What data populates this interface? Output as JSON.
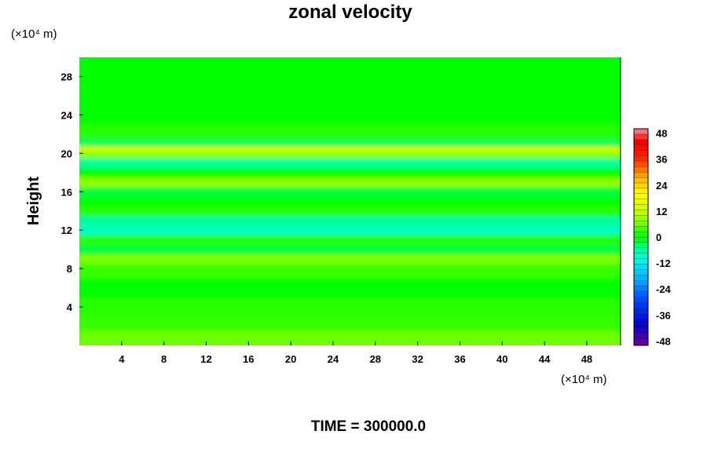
{
  "chart_data": {
    "type": "heatmap",
    "title": "zonal velocity",
    "ylabel": "Height",
    "xlabel": "",
    "y_unit": "(×10⁴ m)",
    "x_unit": "(×10⁴ m)",
    "x_ticks": [
      4,
      8,
      12,
      16,
      20,
      24,
      28,
      32,
      36,
      40,
      44,
      48
    ],
    "y_ticks": [
      4,
      8,
      12,
      16,
      20,
      24,
      28
    ],
    "xlim": [
      0,
      51.2
    ],
    "ylim": [
      0,
      30
    ],
    "colorbar": {
      "ticks": [
        48,
        36,
        24,
        12,
        0,
        -12,
        -24,
        -36,
        -48
      ],
      "range": [
        -50,
        50
      ]
    },
    "bands": [
      {
        "y": 1,
        "value": 6
      },
      {
        "y": 2,
        "value": 3
      },
      {
        "y": 4,
        "value": 2
      },
      {
        "y": 6,
        "value": 0
      },
      {
        "y": 8,
        "value": 3
      },
      {
        "y": 9,
        "value": 7
      },
      {
        "y": 10,
        "value": -2
      },
      {
        "y": 11,
        "value": 2
      },
      {
        "y": 12,
        "value": -8
      },
      {
        "y": 13,
        "value": -6
      },
      {
        "y": 14,
        "value": 2
      },
      {
        "y": 15,
        "value": 0
      },
      {
        "y": 16,
        "value": -2
      },
      {
        "y": 17,
        "value": 8
      },
      {
        "y": 18,
        "value": 0
      },
      {
        "y": 19,
        "value": -6
      },
      {
        "y": 20,
        "value": 8
      },
      {
        "y": 20.5,
        "value": 15
      },
      {
        "y": 21,
        "value": -3
      },
      {
        "y": 22,
        "value": 2
      },
      {
        "y": 24,
        "value": 0
      },
      {
        "y": 26,
        "value": 0
      },
      {
        "y": 28,
        "value": 0
      },
      {
        "y": 30,
        "value": 0
      }
    ]
  },
  "footer": "TIME = 300000.0"
}
